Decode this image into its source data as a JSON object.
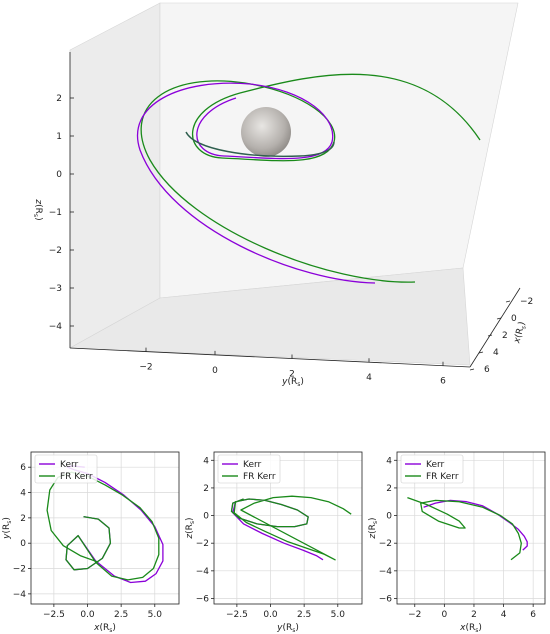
{
  "colors": {
    "kerr": "#8b00d9",
    "fr_kerr": "#1a8a1a",
    "sphere": "#a8a4a0",
    "grid": "#d9d9d9"
  },
  "chart_data": [
    {
      "type": "line",
      "view": "3d",
      "x_label": "x(R_s)",
      "y_label": "y(R_s)",
      "z_label": "z(R_s)",
      "x_ticks": [
        "−2",
        "0",
        "2",
        "4",
        "6"
      ],
      "y_ticks": [
        "−2",
        "0",
        "2",
        "4",
        "6"
      ],
      "z_ticks": [
        "2",
        "1",
        "0",
        "−1",
        "−2",
        "−3",
        "−4"
      ],
      "black_hole": "sphere-at-origin",
      "series": [
        {
          "name": "Kerr",
          "color": "#8b00d9"
        },
        {
          "name": "FR Kerr",
          "color": "#1a8a1a"
        }
      ]
    },
    {
      "type": "line",
      "xlabel": "x(R_s)",
      "ylabel": "y(R_s)",
      "xlim": [
        -4.2,
        6.8
      ],
      "ylim": [
        -4.8,
        7.2
      ],
      "xticks": [
        "−2.5",
        "0.0",
        "2.5",
        "5.0"
      ],
      "xtick_vals": [
        -2.5,
        0,
        2.5,
        5
      ],
      "yticks": [
        "6",
        "4",
        "2",
        "0",
        "−2",
        "−4"
      ],
      "ytick_vals": [
        6,
        4,
        2,
        0,
        -2,
        -4
      ],
      "grid": true,
      "legend": "upper-left",
      "series": [
        {
          "name": "Kerr",
          "color": "#8b00d9",
          "x": [
            -0.3,
            0.8,
            1.6,
            1.7,
            1.1,
            0.0,
            -1.0,
            -1.6,
            -1.5,
            -0.7,
            0.6,
            2.0,
            3.2,
            4.3,
            5.1,
            5.6,
            5.6,
            5.0,
            4.0,
            2.7,
            1.3,
            0.0,
            -1.0,
            -1.5,
            -1.2,
            -0.2
          ],
          "y": [
            2.1,
            1.9,
            1.2,
            0.0,
            -1.2,
            -2.0,
            -2.1,
            -1.3,
            -0.2,
            0.6,
            -1.4,
            -2.6,
            -3.1,
            -3.0,
            -2.4,
            -1.4,
            -0.1,
            1.3,
            2.6,
            3.8,
            4.8,
            5.5,
            5.8,
            6.0,
            6.1,
            6.0
          ]
        },
        {
          "name": "FR Kerr",
          "color": "#1a8a1a",
          "x": [
            -0.3,
            0.8,
            1.6,
            1.7,
            1.1,
            0.0,
            -1.0,
            -1.6,
            -1.5,
            -0.7,
            0.6,
            1.8,
            3.0,
            4.1,
            4.9,
            5.3,
            5.3,
            4.8,
            3.9,
            2.6,
            1.3,
            0.0,
            -1.2,
            -2.2,
            -2.8,
            -3.0,
            -2.7,
            -1.8,
            -0.5,
            0.8
          ],
          "y": [
            2.1,
            1.9,
            1.2,
            0.0,
            -1.2,
            -2.0,
            -2.1,
            -1.3,
            -0.2,
            0.6,
            -1.5,
            -2.6,
            -2.9,
            -2.7,
            -2.0,
            -0.9,
            0.4,
            1.7,
            2.8,
            3.8,
            4.6,
            5.3,
            5.6,
            5.2,
            4.2,
            2.6,
            1.0,
            -0.2,
            -1.0,
            -1.5
          ]
        }
      ]
    },
    {
      "type": "line",
      "xlabel": "y(R_s)",
      "ylabel": "z(R_s)",
      "xlim": [
        -4.2,
        6.8
      ],
      "ylim": [
        -6.4,
        4.6
      ],
      "xticks": [
        "−2.5",
        "0.0",
        "2.5",
        "5.0"
      ],
      "xtick_vals": [
        -2.5,
        0,
        2.5,
        5
      ],
      "yticks": [
        "4",
        "2",
        "0",
        "−2",
        "−4",
        "−6"
      ],
      "ytick_vals": [
        4,
        2,
        0,
        -2,
        -4,
        -6
      ],
      "grid": true,
      "legend": "upper-left",
      "series": [
        {
          "name": "Kerr",
          "color": "#8b00d9",
          "x": [
            -2.0,
            -2.8,
            -2.9,
            -2.3,
            -1.0,
            0.5,
            1.8,
            2.7,
            2.8,
            2.0,
            0.8,
            -0.4,
            -1.6,
            -2.6,
            -2.8,
            -2.0,
            -0.6,
            1.0,
            2.4,
            3.4,
            3.9
          ],
          "y": [
            1.2,
            0.9,
            0.3,
            -0.2,
            -0.6,
            -0.8,
            -0.8,
            -0.6,
            -0.1,
            0.4,
            0.8,
            1.1,
            1.2,
            1.0,
            0.2,
            -0.6,
            -1.3,
            -2.0,
            -2.5,
            -2.9,
            -3.2
          ]
        },
        {
          "name": "FR Kerr",
          "color": "#1a8a1a",
          "x": [
            -2.0,
            -2.8,
            -2.9,
            -2.3,
            -1.0,
            0.5,
            1.8,
            2.7,
            2.8,
            2.0,
            0.8,
            -0.4,
            -1.6,
            -2.6,
            -2.7,
            -1.8,
            -0.3,
            1.3,
            2.8,
            4.0,
            4.8,
            -2.2,
            -1.2,
            0.2,
            1.6,
            3.0,
            4.3,
            5.4,
            6.0
          ],
          "y": [
            1.2,
            0.9,
            0.3,
            -0.2,
            -0.6,
            -0.8,
            -0.8,
            -0.6,
            -0.1,
            0.4,
            0.8,
            1.1,
            1.2,
            1.0,
            0.2,
            -0.5,
            -1.2,
            -1.9,
            -2.4,
            -2.8,
            -3.2,
            0.4,
            0.9,
            1.3,
            1.4,
            1.3,
            1.0,
            0.5,
            0.1
          ]
        }
      ]
    },
    {
      "type": "line",
      "xlabel": "x(R_s)",
      "ylabel": "z(R_s)",
      "xlim": [
        -3.2,
        6.8
      ],
      "ylim": [
        -6.4,
        4.6
      ],
      "xticks": [
        "−2",
        "0",
        "2",
        "4",
        "6"
      ],
      "xtick_vals": [
        -2,
        0,
        2,
        4,
        6
      ],
      "yticks": [
        "4",
        "2",
        "0",
        "−2",
        "−4",
        "−6"
      ],
      "ytick_vals": [
        4,
        2,
        0,
        -2,
        -4,
        -6
      ],
      "grid": true,
      "legend": "upper-left",
      "series": [
        {
          "name": "Kerr",
          "color": "#8b00d9",
          "x": [
            -1.4,
            -0.6,
            0.4,
            1.5,
            2.6,
            3.6,
            4.4,
            5.0,
            5.4,
            5.6,
            5.6,
            5.3
          ],
          "y": [
            0.6,
            0.9,
            1.1,
            1.0,
            0.7,
            0.1,
            -0.5,
            -1.0,
            -1.5,
            -1.9,
            -2.2,
            -2.5
          ]
        },
        {
          "name": "FR Kerr",
          "color": "#1a8a1a",
          "x": [
            -2.5,
            -1.2,
            0.2,
            1.0,
            1.4,
            1.0,
            -0.4,
            -1.5,
            -1.6,
            -0.6,
            1.0,
            2.6,
            3.8,
            4.6,
            5.0,
            5.2,
            5.1,
            4.5
          ],
          "y": [
            1.3,
            0.8,
            0.1,
            -0.4,
            -0.9,
            -0.9,
            -0.4,
            0.3,
            0.9,
            1.1,
            1.0,
            0.6,
            0.0,
            -0.6,
            -1.3,
            -2.0,
            -2.7,
            -3.2
          ]
        }
      ]
    }
  ]
}
